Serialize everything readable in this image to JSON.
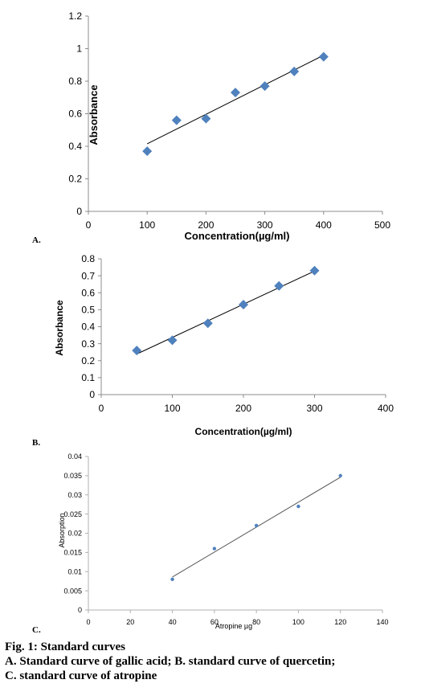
{
  "chart_data": [
    {
      "type": "scatter",
      "panel_label": "A.",
      "xlabel": "Concentration(µg/ml)",
      "ylabel": "Absorbance",
      "xlim": [
        0,
        500
      ],
      "ylim": [
        0,
        1.2
      ],
      "x_ticks": [
        "0",
        "100",
        "200",
        "300",
        "400",
        "500"
      ],
      "y_ticks": [
        "0",
        "0.2",
        "0.4",
        "0.6",
        "0.8",
        "1",
        "1.2"
      ],
      "marker_color": "#4f81bd",
      "trendline": true,
      "grid": false,
      "points": [
        {
          "x": 100,
          "y": 0.37
        },
        {
          "x": 150,
          "y": 0.56
        },
        {
          "x": 200,
          "y": 0.57
        },
        {
          "x": 250,
          "y": 0.73
        },
        {
          "x": 300,
          "y": 0.77
        },
        {
          "x": 350,
          "y": 0.86
        },
        {
          "x": 400,
          "y": 0.95
        }
      ]
    },
    {
      "type": "scatter",
      "panel_label": "B.",
      "xlabel": "Concentration(µg/ml)",
      "ylabel": "Absorbance",
      "xlim": [
        0,
        400
      ],
      "ylim": [
        0,
        0.8
      ],
      "x_ticks": [
        "0",
        "100",
        "200",
        "300",
        "400"
      ],
      "y_ticks": [
        "0",
        "0.1",
        "0.2",
        "0.3",
        "0.4",
        "0.5",
        "0.6",
        "0.7",
        "0.8"
      ],
      "marker_color": "#4f81bd",
      "trendline": true,
      "grid": false,
      "points": [
        {
          "x": 50,
          "y": 0.26
        },
        {
          "x": 100,
          "y": 0.32
        },
        {
          "x": 150,
          "y": 0.42
        },
        {
          "x": 200,
          "y": 0.53
        },
        {
          "x": 250,
          "y": 0.64
        },
        {
          "x": 300,
          "y": 0.73
        }
      ]
    },
    {
      "type": "scatter",
      "panel_label": "C.",
      "xlabel": "Atropine  µg",
      "ylabel": "Absorption",
      "xlim": [
        0,
        140
      ],
      "ylim": [
        0,
        0.04
      ],
      "x_ticks": [
        "0",
        "20",
        "40",
        "60",
        "80",
        "100",
        "120",
        "140"
      ],
      "y_ticks": [
        "0",
        "0.005",
        "0.01",
        "0.015",
        "0.02",
        "0.025",
        "0.03",
        "0.035",
        "0.04"
      ],
      "marker_color": "#4f81bd",
      "trendline": true,
      "grid": false,
      "points": [
        {
          "x": 40,
          "y": 0.008
        },
        {
          "x": 60,
          "y": 0.016
        },
        {
          "x": 80,
          "y": 0.022
        },
        {
          "x": 100,
          "y": 0.027
        },
        {
          "x": 120,
          "y": 0.035
        }
      ]
    }
  ],
  "caption": {
    "line1": "Fig. 1: Standard curves",
    "line2": "A. Standard curve of gallic acid; B. standard curve of quercetin;",
    "line3": "C. standard curve of atropine"
  }
}
